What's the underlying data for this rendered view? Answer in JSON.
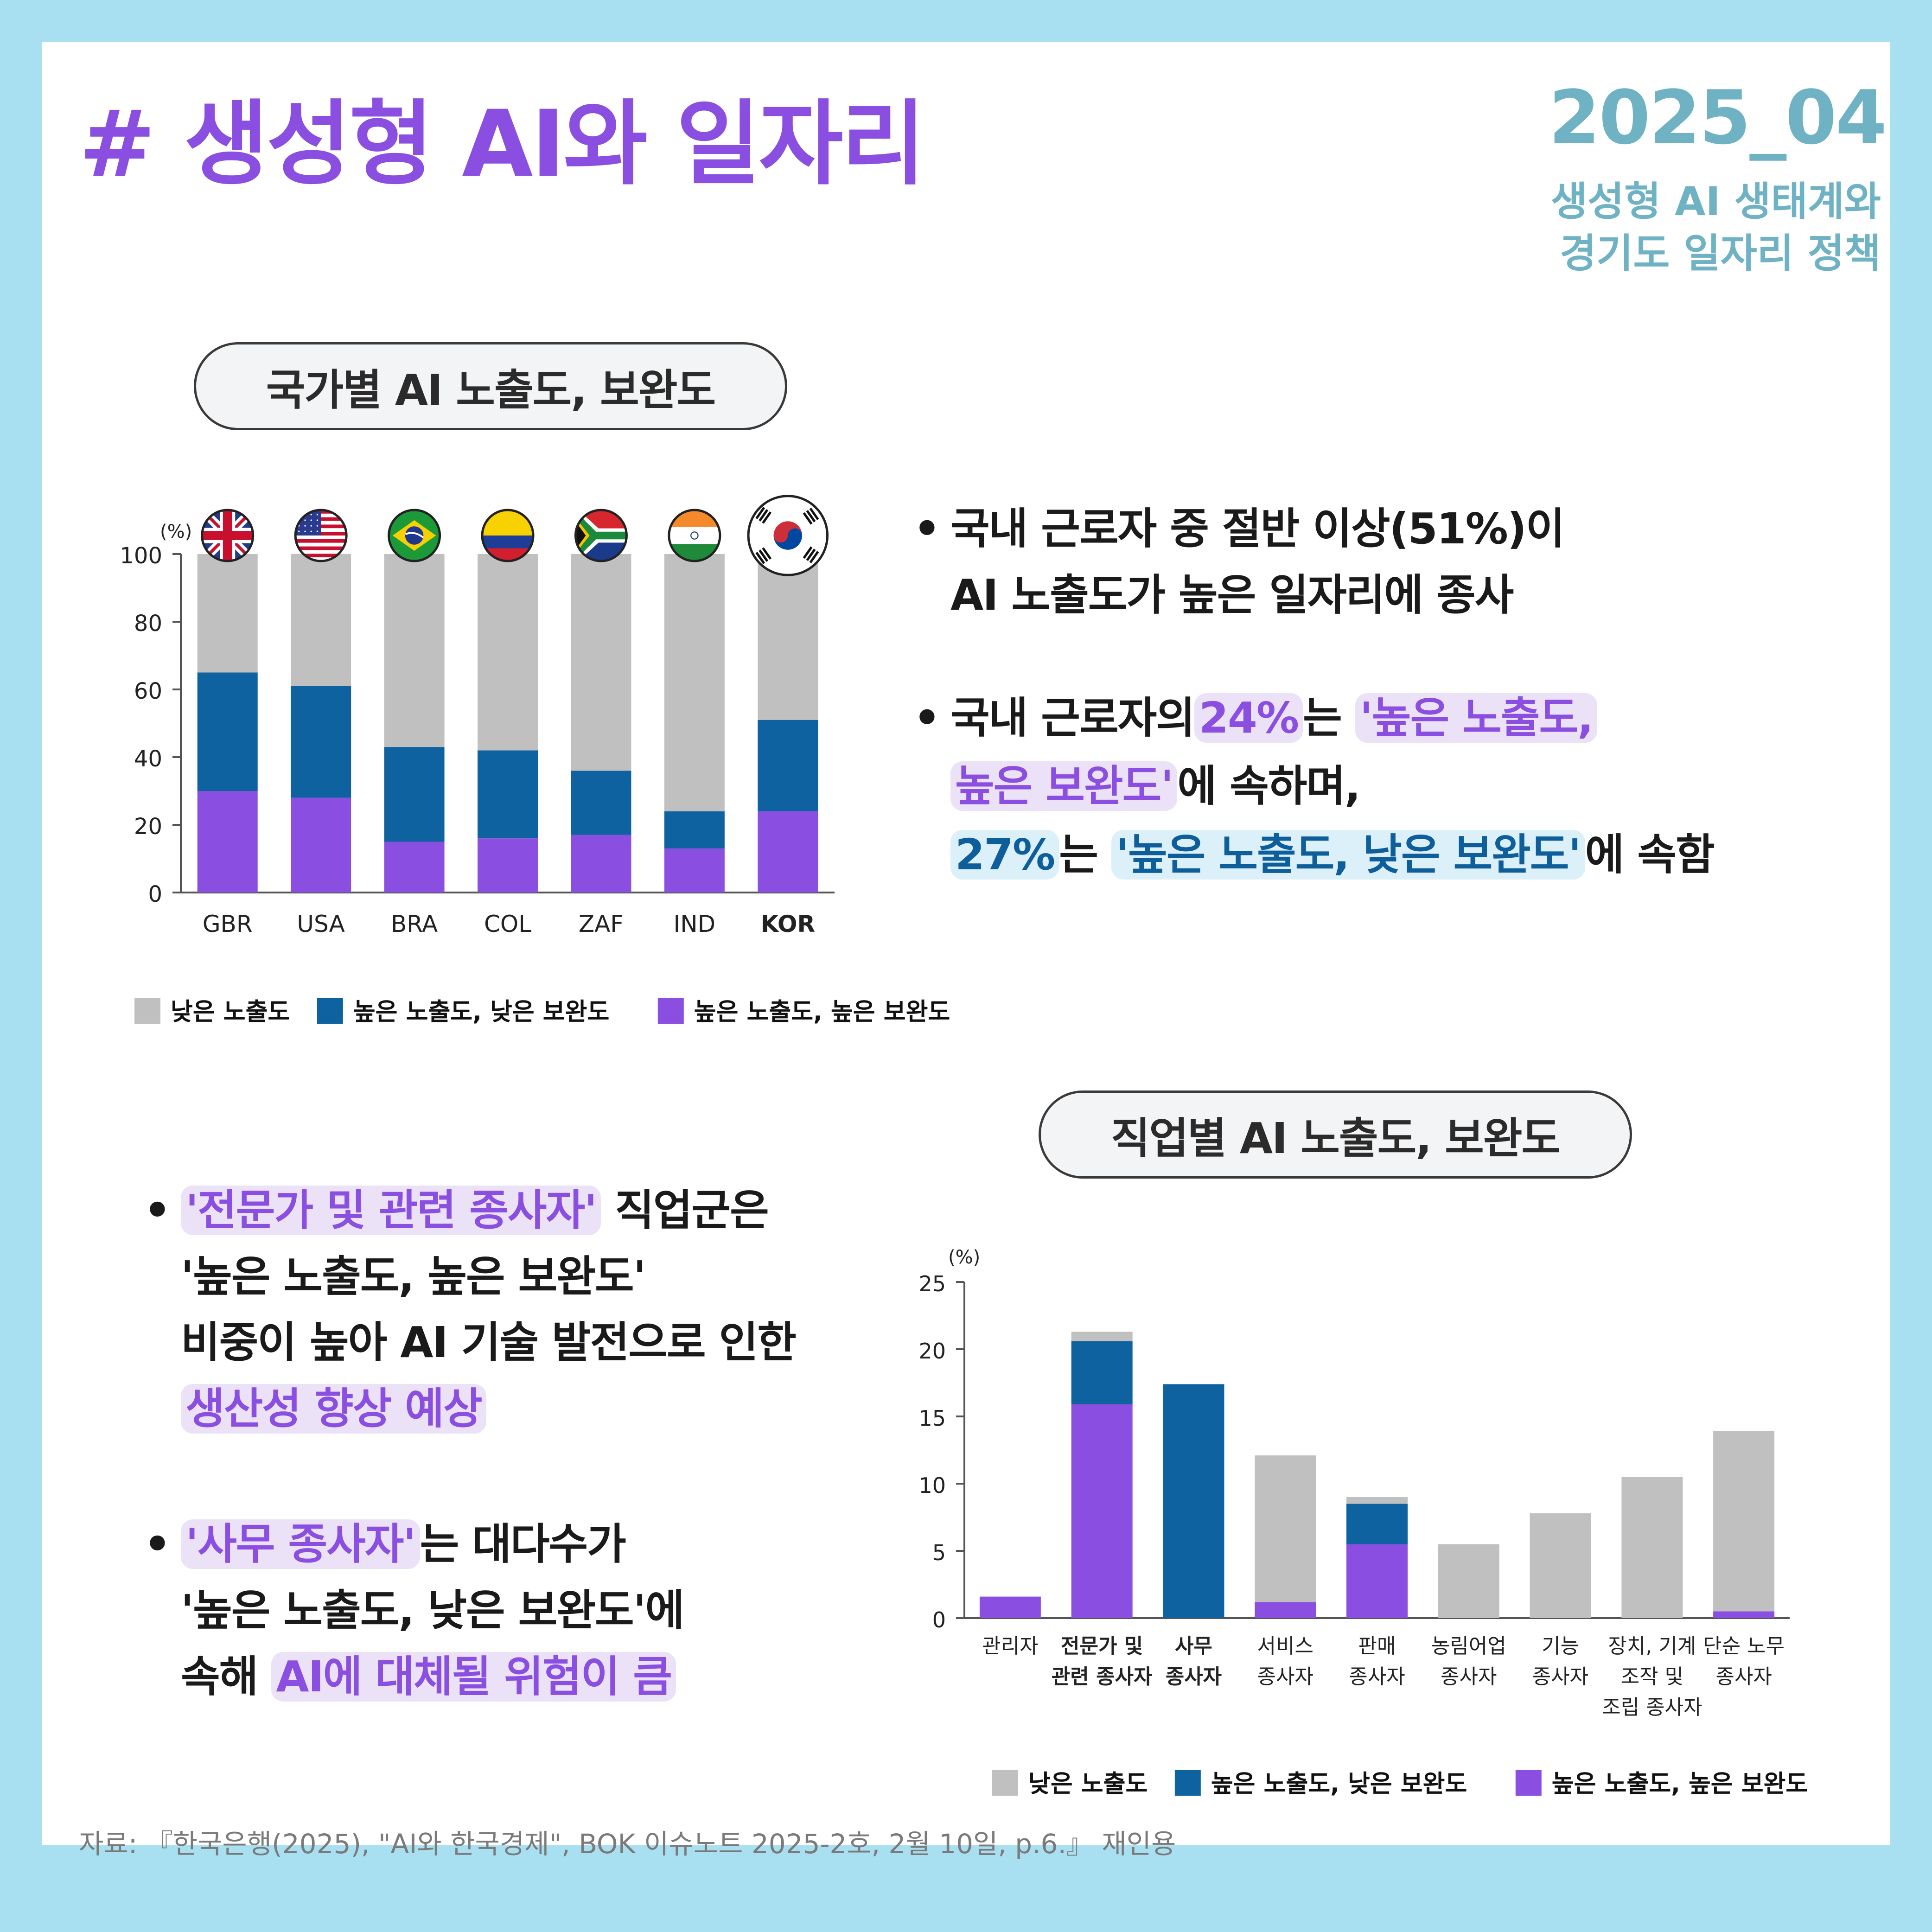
{
  "header": {
    "title": "# 생성형 AI와 일자리",
    "issue_no": "2025_04",
    "issue_sub_line1": "생성형 AI 생태계와",
    "issue_sub_line2": "경기도 일자리 정책"
  },
  "section1": {
    "pill": "국가별 AI 노출도, 보완도",
    "bullet1_line1": "국내 근로자 중 절반 이상(51%)이",
    "bullet1_line2": "AI 노출도가 높은 일자리에 종사",
    "bullet2_a": "국내 근로자의",
    "bullet2_pct": "24%",
    "bullet2_b": "는",
    "bullet2_hl1": "'높은 노출도,",
    "bullet2_hl2": "높은 보완도'",
    "bullet2_c": "에 속하며,",
    "bullet2_pct2": "27%",
    "bullet2_d": "는",
    "bullet2_hl3": "'높은 노출도, 낮은 보완도'",
    "bullet2_e": "에 속함"
  },
  "section2": {
    "pill": "직업별 AI 노출도, 보완도",
    "bullet1_hl": "'전문가 및 관련 종사자'",
    "bullet1_a": " 직업군은",
    "bullet1_line2": "'높은 노출도, 높은 보완도'",
    "bullet1_line3": "비중이 높아 AI 기술 발전으로 인한",
    "bullet1_hl2": "생산성 향상 예상",
    "bullet2_hl": "'사무 종사자'",
    "bullet2_a": "는 대다수가",
    "bullet2_line2": "'높은 노출도, 낮은 보완도'에",
    "bullet2_b": "속해 ",
    "bullet2_hl2": "AI에 대체될 위험이 큼"
  },
  "colors": {
    "low": "#c0c0c0",
    "high_low": "#0f62a0",
    "high_high": "#8a4fe0"
  },
  "legend": {
    "low": "낮은 노출도",
    "high_low": "높은 노출도, 낮은 보완도",
    "high_high": "높은 노출도, 높은 보완도"
  },
  "chart_data": [
    {
      "type": "bar",
      "stacked": true,
      "title": "국가별 AI 노출도, 보완도",
      "ylabel": "(%)",
      "ylim": [
        0,
        100
      ],
      "yticks": [
        0,
        20,
        40,
        60,
        80,
        100
      ],
      "categories": [
        "GBR",
        "USA",
        "BRA",
        "COL",
        "ZAF",
        "IND",
        "KOR"
      ],
      "flags": [
        "uk-flag-icon",
        "us-flag-icon",
        "brazil-flag-icon",
        "colombia-flag-icon",
        "south-africa-flag-icon",
        "india-flag-icon",
        "korea-flag-icon"
      ],
      "highlight_category": "KOR",
      "series": [
        {
          "name": "높은 노출도, 높은 보완도",
          "key": "high_high",
          "values": [
            30,
            28,
            15,
            16,
            17,
            13,
            24
          ]
        },
        {
          "name": "높은 노출도, 낮은 보완도",
          "key": "high_low",
          "values": [
            35,
            33,
            28,
            26,
            19,
            11,
            27
          ]
        },
        {
          "name": "낮은 노출도",
          "key": "low",
          "values": [
            35,
            39,
            57,
            58,
            64,
            76,
            49
          ]
        }
      ],
      "legend_position": "bottom-left"
    },
    {
      "type": "bar",
      "stacked": true,
      "title": "직업별 AI 노출도, 보완도",
      "ylabel": "(%)",
      "ylim": [
        0,
        25
      ],
      "yticks": [
        0,
        5,
        10,
        15,
        20,
        25
      ],
      "categories": [
        [
          "관리자"
        ],
        [
          "전문가 및",
          "관련 종사자"
        ],
        [
          "사무",
          "종사자"
        ],
        [
          "서비스",
          "종사자"
        ],
        [
          "판매",
          "종사자"
        ],
        [
          "농림어업",
          "종사자"
        ],
        [
          "기능",
          "종사자"
        ],
        [
          "장치, 기계",
          "조작 및",
          "조립 종사자"
        ],
        [
          "단순 노무",
          "종사자"
        ]
      ],
      "bold_categories": [
        1,
        2
      ],
      "series": [
        {
          "name": "높은 노출도, 높은 보완도",
          "key": "high_high",
          "values": [
            1.6,
            15.9,
            0,
            1.2,
            5.5,
            0,
            0,
            0,
            0.5
          ]
        },
        {
          "name": "높은 노출도, 낮은 보완도",
          "key": "high_low",
          "values": [
            0,
            4.7,
            17.4,
            0,
            3.0,
            0,
            0,
            0,
            0
          ]
        },
        {
          "name": "낮은 노출도",
          "key": "low",
          "values": [
            0,
            0.7,
            0,
            10.9,
            0.5,
            5.5,
            7.8,
            10.5,
            13.4
          ]
        }
      ],
      "legend_position": "bottom-right"
    }
  ],
  "source": "자료: 『한국은행(2025), \"AI와 한국경제\", BOK 이슈노트 2025-2호, 2월 10일, p.6.』 재인용"
}
